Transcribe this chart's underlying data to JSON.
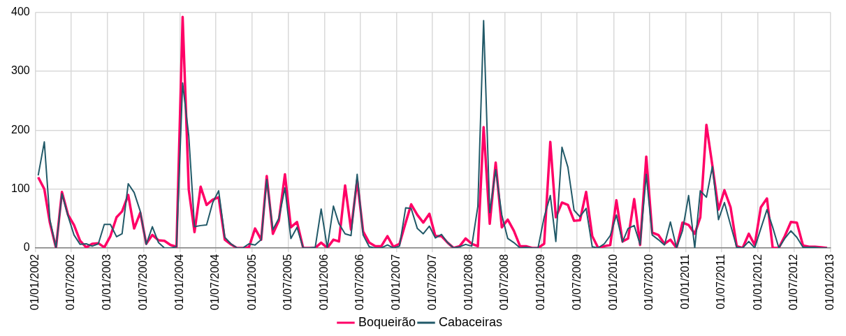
{
  "chart_data": {
    "type": "line",
    "x": [
      "2002-01-15",
      "2002-02-15",
      "2002-03-15",
      "2002-04-15",
      "2002-05-15",
      "2002-06-15",
      "2002-07-15",
      "2002-08-15",
      "2002-09-15",
      "2002-10-15",
      "2002-11-15",
      "2002-12-15",
      "2003-01-15",
      "2003-02-15",
      "2003-03-15",
      "2003-04-15",
      "2003-05-15",
      "2003-06-15",
      "2003-07-15",
      "2003-08-15",
      "2003-09-15",
      "2003-10-15",
      "2003-11-15",
      "2003-12-15",
      "2004-01-15",
      "2004-02-15",
      "2004-03-15",
      "2004-04-15",
      "2004-05-15",
      "2004-06-15",
      "2004-07-15",
      "2004-08-15",
      "2004-09-15",
      "2004-10-15",
      "2004-11-15",
      "2004-12-15",
      "2005-01-15",
      "2005-02-15",
      "2005-03-15",
      "2005-04-15",
      "2005-05-15",
      "2005-06-15",
      "2005-07-15",
      "2005-08-15",
      "2005-09-15",
      "2005-10-15",
      "2005-11-15",
      "2005-12-15",
      "2006-01-15",
      "2006-02-15",
      "2006-03-15",
      "2006-04-15",
      "2006-05-15",
      "2006-06-15",
      "2006-07-15",
      "2006-08-15",
      "2006-09-15",
      "2006-10-15",
      "2006-11-15",
      "2006-12-15",
      "2007-01-15",
      "2007-02-15",
      "2007-03-15",
      "2007-04-15",
      "2007-05-15",
      "2007-06-15",
      "2007-07-15",
      "2007-08-15",
      "2007-09-15",
      "2007-10-15",
      "2007-11-15",
      "2007-12-15",
      "2008-01-15",
      "2008-02-15",
      "2008-03-15",
      "2008-04-15",
      "2008-05-15",
      "2008-06-15",
      "2008-07-15",
      "2008-08-15",
      "2008-09-15",
      "2008-10-15",
      "2008-11-15",
      "2008-12-15",
      "2009-01-15",
      "2009-02-15",
      "2009-03-15",
      "2009-04-15",
      "2009-05-15",
      "2009-06-15",
      "2009-07-15",
      "2009-08-15",
      "2009-09-15",
      "2009-10-15",
      "2009-11-15",
      "2009-12-15",
      "2010-01-15",
      "2010-02-15",
      "2010-03-15",
      "2010-04-15",
      "2010-05-15",
      "2010-06-15",
      "2010-07-15",
      "2010-08-15",
      "2010-09-15",
      "2010-10-15",
      "2010-11-15",
      "2010-12-15",
      "2011-01-15",
      "2011-02-15",
      "2011-03-15",
      "2011-04-15",
      "2011-05-15",
      "2011-06-15",
      "2011-07-15",
      "2011-08-15",
      "2011-09-15",
      "2011-10-15",
      "2011-11-15",
      "2011-12-15",
      "2012-01-15",
      "2012-02-15",
      "2012-03-15",
      "2012-04-15",
      "2012-05-15",
      "2012-06-15",
      "2012-07-15",
      "2012-08-15",
      "2012-09-15",
      "2012-10-15",
      "2012-11-15",
      "2012-12-15"
    ],
    "series": [
      {
        "name": "Boqueirão",
        "color": "#ff0066",
        "values": [
          120,
          100,
          43,
          0,
          95,
          56,
          39,
          12,
          1,
          7,
          8,
          1,
          20,
          52,
          62,
          90,
          33,
          60,
          7,
          22,
          13,
          12,
          5,
          2,
          392,
          99,
          27,
          104,
          73,
          82,
          86,
          14,
          6,
          0,
          0,
          1,
          33,
          14,
          122,
          24,
          46,
          125,
          35,
          44,
          0,
          0,
          0,
          9,
          0,
          14,
          11,
          106,
          31,
          115,
          28,
          9,
          3,
          3,
          20,
          2,
          7,
          43,
          74,
          56,
          43,
          58,
          20,
          20,
          9,
          0,
          3,
          16,
          7,
          3,
          205,
          41,
          145,
          35,
          48,
          29,
          3,
          3,
          0,
          0,
          7,
          180,
          52,
          77,
          73,
          46,
          47,
          95,
          20,
          0,
          3,
          5,
          81,
          11,
          16,
          83,
          5,
          155,
          26,
          22,
          7,
          14,
          0,
          43,
          39,
          24,
          52,
          209,
          140,
          65,
          98,
          69,
          3,
          0,
          24,
          5,
          69,
          84,
          0,
          0,
          20,
          44,
          43,
          4,
          2,
          2,
          1,
          0
        ]
      },
      {
        "name": "Cabaceiras",
        "color": "#215968",
        "values": [
          123,
          180,
          48,
          0,
          92,
          54,
          22,
          6,
          7,
          3,
          7,
          40,
          40,
          19,
          24,
          109,
          94,
          62,
          6,
          36,
          9,
          0,
          0,
          2,
          280,
          190,
          36,
          38,
          39,
          77,
          97,
          18,
          7,
          0,
          0,
          7,
          5,
          14,
          116,
          31,
          50,
          102,
          16,
          35,
          0,
          0,
          1,
          66,
          0,
          71,
          41,
          24,
          21,
          125,
          22,
          2,
          0,
          0,
          5,
          0,
          3,
          68,
          67,
          33,
          24,
          37,
          17,
          23,
          9,
          0,
          2,
          6,
          3,
          71,
          386,
          60,
          133,
          56,
          16,
          9,
          0,
          1,
          0,
          0,
          52,
          89,
          11,
          171,
          137,
          64,
          53,
          67,
          2,
          0,
          7,
          21,
          56,
          10,
          33,
          38,
          6,
          125,
          22,
          14,
          5,
          44,
          0,
          29,
          89,
          0,
          97,
          86,
          138,
          48,
          77,
          39,
          1,
          0,
          11,
          0,
          33,
          65,
          35,
          0,
          16,
          29,
          18,
          1,
          1,
          1,
          0,
          0
        ]
      }
    ],
    "xlim": [
      "2002-01-01",
      "2013-01-01"
    ],
    "xticks": [
      {
        "value": "2002-01-01",
        "label": "01/01/2002"
      },
      {
        "value": "2002-07-01",
        "label": "01/07/2002"
      },
      {
        "value": "2003-01-01",
        "label": "01/01/2003"
      },
      {
        "value": "2003-07-01",
        "label": "01/07/2003"
      },
      {
        "value": "2004-01-01",
        "label": "01/01/2004"
      },
      {
        "value": "2004-07-01",
        "label": "01/07/2004"
      },
      {
        "value": "2005-01-01",
        "label": "01/01/2005"
      },
      {
        "value": "2005-07-01",
        "label": "01/07/2005"
      },
      {
        "value": "2006-01-01",
        "label": "01/01/2006"
      },
      {
        "value": "2006-07-01",
        "label": "01/07/2006"
      },
      {
        "value": "2007-01-01",
        "label": "01/01/2007"
      },
      {
        "value": "2007-07-01",
        "label": "01/07/2007"
      },
      {
        "value": "2008-01-01",
        "label": "01/01/2008"
      },
      {
        "value": "2008-07-01",
        "label": "01/07/2008"
      },
      {
        "value": "2009-01-01",
        "label": "01/01/2009"
      },
      {
        "value": "2009-07-01",
        "label": "01/07/2009"
      },
      {
        "value": "2010-01-01",
        "label": "01/01/2010"
      },
      {
        "value": "2010-07-01",
        "label": "01/07/2010"
      },
      {
        "value": "2011-01-01",
        "label": "01/01/2011"
      },
      {
        "value": "2011-07-01",
        "label": "01/07/2011"
      },
      {
        "value": "2012-01-01",
        "label": "01/01/2012"
      },
      {
        "value": "2012-07-01",
        "label": "01/07/2012"
      },
      {
        "value": "2013-01-01",
        "label": "01/01/2013"
      }
    ],
    "ylim": [
      0,
      400
    ],
    "yticks": [
      0,
      100,
      200,
      300,
      400
    ],
    "grid": true,
    "legend": "bottom",
    "marker": "none",
    "line_style": "solid"
  }
}
